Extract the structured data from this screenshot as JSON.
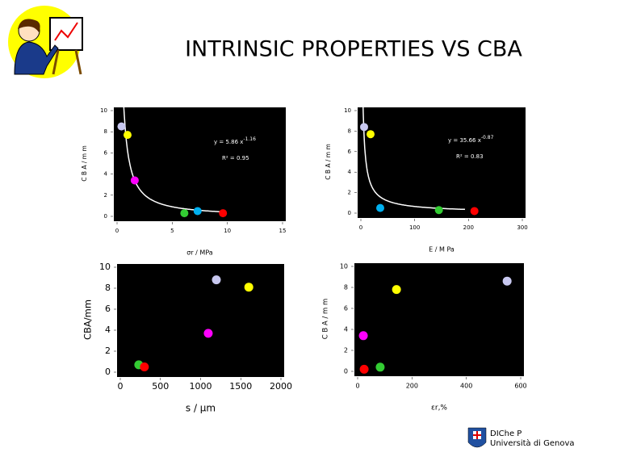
{
  "title": "INTRINSIC PROPERTIES VS CBA",
  "footer": {
    "lines": [
      "DIChe P",
      "Università di Genova"
    ]
  },
  "chart_data": [
    {
      "type": "scatter",
      "x_label": "σr / MPa",
      "y_label": "C B A / m m",
      "x": [
        0.4,
        0.95,
        1.6,
        6.1,
        7.3,
        9.6
      ],
      "values": [
        8.5,
        7.7,
        3.4,
        0.3,
        0.5,
        0.3
      ],
      "colors": [
        "#c8c8f0",
        "#ffff00",
        "#ff00ff",
        "#33cc33",
        "#00b0f0",
        "#ff0000"
      ],
      "xlim": [
        0,
        15
      ],
      "xticks": [
        0,
        5,
        10,
        15
      ],
      "ylim": [
        0,
        10
      ],
      "yticks": [
        0,
        2,
        4,
        6,
        8,
        10
      ],
      "trendline": {
        "coefficient": 5.86,
        "exponent": -1.16
      },
      "equation": "y = 5.86 x",
      "equation_exponent": "-1.16",
      "r_squared": "R² = 0.95"
    },
    {
      "type": "scatter",
      "x_label": "E / M Pa",
      "y_label": "C B A / m m",
      "x": [
        6,
        18,
        36,
        145,
        211
      ],
      "values": [
        8.4,
        7.7,
        0.5,
        0.3,
        0.2
      ],
      "colors": [
        "#c8c8f0",
        "#ffff00",
        "#00b0f0",
        "#33cc33",
        "#ff0000"
      ],
      "xlim": [
        0,
        300
      ],
      "xticks": [
        0,
        100,
        200,
        300
      ],
      "ylim": [
        0,
        10
      ],
      "yticks": [
        0,
        2,
        4,
        6,
        8,
        10
      ],
      "trendline": {
        "coefficient": 35.66,
        "exponent": -0.87
      },
      "equation": "y = 35.66 x",
      "equation_exponent": "-0.87",
      "r_squared": "R² = 0.83"
    },
    {
      "type": "scatter",
      "x_label": "s / µm",
      "y_label": "CBA/mm",
      "x": [
        1196,
        1600,
        1095,
        230,
        300
      ],
      "values": [
        8.8,
        8.1,
        3.7,
        0.7,
        0.5
      ],
      "colors": [
        "#c8c8f0",
        "#ffff00",
        "#ff00ff",
        "#33cc33",
        "#ff0000"
      ],
      "xlim": [
        0,
        2000
      ],
      "xticks": [
        0,
        500,
        1000,
        1500,
        2000
      ],
      "ylim": [
        0,
        10
      ],
      "yticks": [
        0,
        2,
        4,
        6,
        8,
        10
      ]
    },
    {
      "type": "scatter",
      "x_label": "εr,%",
      "y_label": "C B A / m m",
      "x": [
        550,
        143,
        21,
        24,
        83
      ],
      "values": [
        8.6,
        7.8,
        3.4,
        0.2,
        0.4
      ],
      "colors": [
        "#c8c8f0",
        "#ffff00",
        "#ff00ff",
        "#ff0000",
        "#33cc33"
      ],
      "xlim": [
        0,
        600
      ],
      "xticks": [
        0,
        200,
        400,
        600
      ],
      "ylim": [
        0,
        10
      ],
      "yticks": [
        0,
        2,
        4,
        6,
        8,
        10
      ]
    }
  ]
}
